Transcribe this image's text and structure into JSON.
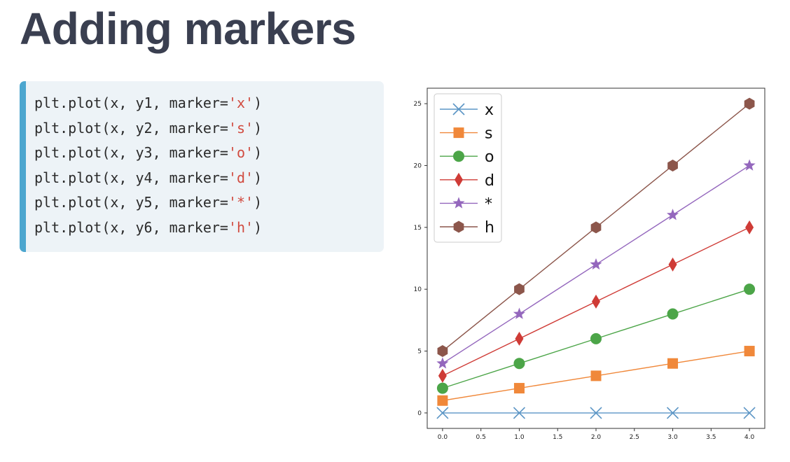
{
  "page": {
    "title": "Adding markers"
  },
  "code": {
    "lines": [
      {
        "prefix": "plt.plot(x, y1, marker=",
        "str": "'x'",
        "suffix": ")"
      },
      {
        "prefix": "plt.plot(x, y2, marker=",
        "str": "'s'",
        "suffix": ")"
      },
      {
        "prefix": "plt.plot(x, y3, marker=",
        "str": "'o'",
        "suffix": ")"
      },
      {
        "prefix": "plt.plot(x, y4, marker=",
        "str": "'d'",
        "suffix": ")"
      },
      {
        "prefix": "plt.plot(x, y5, marker=",
        "str": "'*'",
        "suffix": ")"
      },
      {
        "prefix": "plt.plot(x, y6, marker=",
        "str": "'h'",
        "suffix": ")"
      }
    ]
  },
  "chart_data": {
    "type": "line",
    "title": "",
    "xlabel": "",
    "ylabel": "",
    "x": [
      0,
      1,
      2,
      3,
      4
    ],
    "xlim": [
      -0.2,
      4.2
    ],
    "ylim": [
      -1.25,
      26.25
    ],
    "xticks": [
      "0.0",
      "0.5",
      "1.0",
      "1.5",
      "2.0",
      "2.5",
      "3.0",
      "3.5",
      "4.0"
    ],
    "yticks": [
      "0",
      "5",
      "10",
      "15",
      "20",
      "25"
    ],
    "grid": false,
    "legend_position": "top-left",
    "series": [
      {
        "name": "x",
        "marker": "x",
        "color": "#5b95c5",
        "values": [
          0,
          0,
          0,
          0,
          0
        ]
      },
      {
        "name": "s",
        "marker": "square",
        "color": "#f0883a",
        "values": [
          1,
          2,
          3,
          4,
          5
        ]
      },
      {
        "name": "o",
        "marker": "circle",
        "color": "#4ca548",
        "values": [
          2,
          4,
          6,
          8,
          10
        ]
      },
      {
        "name": "d",
        "marker": "diamond",
        "color": "#cf3b36",
        "values": [
          3,
          6,
          9,
          12,
          15
        ]
      },
      {
        "name": "*",
        "marker": "star",
        "color": "#9467bd",
        "values": [
          4,
          8,
          12,
          16,
          20
        ]
      },
      {
        "name": "h",
        "marker": "hexagon",
        "color": "#8c564b",
        "values": [
          5,
          10,
          15,
          20,
          25
        ]
      }
    ]
  }
}
